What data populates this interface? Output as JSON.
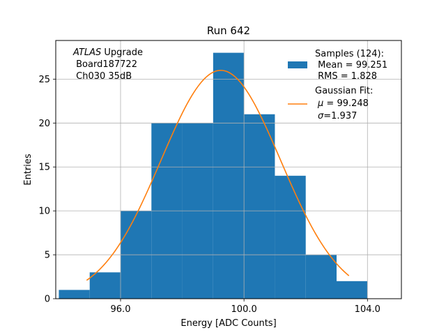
{
  "chart_data": {
    "type": "bar",
    "title": "Run 642",
    "xlabel": "Energy [ADC Counts]",
    "ylabel": "Entries",
    "xlim": [
      93.9,
      105.1
    ],
    "ylim": [
      0,
      29.4
    ],
    "grid": true,
    "x_ticks": [
      96,
      100,
      104
    ],
    "x_tick_labels": [
      "96.0",
      "100.0",
      "104.0"
    ],
    "y_ticks": [
      0,
      5,
      10,
      15,
      20,
      25
    ],
    "y_tick_labels": [
      "0",
      "5",
      "10",
      "15",
      "20",
      "25"
    ],
    "bin_edges": [
      94,
      95,
      96,
      97,
      98,
      99,
      100,
      101,
      102,
      103,
      104
    ],
    "counts": [
      1,
      3,
      10,
      20,
      20,
      28,
      21,
      14,
      5,
      2
    ],
    "bar_color": "#1f77b4",
    "fit": {
      "mu": 99.248,
      "sigma": 1.937,
      "amplitude": 26.0,
      "x_range": [
        94.9,
        103.4
      ],
      "color": "#ff7f0e"
    },
    "annotation": {
      "line1_italic": "ATLAS",
      "line1_rest": " Upgrade",
      "line2": " Board187722",
      "line3": " Ch030 35dB"
    },
    "legend": {
      "placement": "top-right",
      "samples": {
        "line1": "Samples (124):",
        "line2": " Mean = 99.251",
        "line3": " RMS = 1.828"
      },
      "fit": {
        "line1": "Gaussian Fit:",
        "line2_sym": "μ",
        "line2_rest": " = 99.248",
        "line3_sym": "σ",
        "line3_rest": "=1.937"
      }
    }
  }
}
